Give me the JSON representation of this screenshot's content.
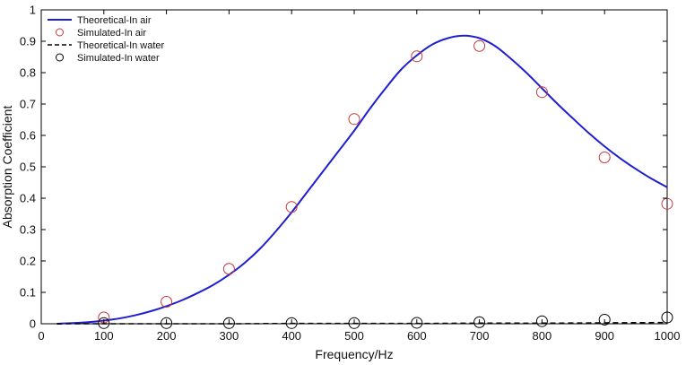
{
  "chart_data": {
    "type": "line",
    "xlabel": "Frequency/Hz",
    "ylabel": "Absorption Coefficient",
    "xlim": [
      0,
      1000
    ],
    "ylim": [
      0,
      1
    ],
    "xticks": [
      0,
      100,
      200,
      300,
      400,
      500,
      600,
      700,
      800,
      900,
      1000
    ],
    "yticks": [
      0,
      0.1,
      0.2,
      0.3,
      0.4,
      0.5,
      0.6,
      0.7,
      0.8,
      0.9,
      1
    ],
    "grid": false,
    "legend_position": "top-left",
    "series": [
      {
        "name": "Theoretical-In air",
        "style": "solid-line",
        "color": "#1f1fd1",
        "x": [
          25,
          50,
          75,
          100,
          125,
          150,
          175,
          200,
          225,
          250,
          275,
          300,
          325,
          350,
          375,
          400,
          425,
          450,
          475,
          500,
          525,
          550,
          575,
          600,
          625,
          650,
          675,
          700,
          725,
          750,
          775,
          800,
          825,
          850,
          875,
          900,
          925,
          950,
          975,
          1000
        ],
        "y": [
          0.0,
          0.002,
          0.005,
          0.01,
          0.017,
          0.027,
          0.04,
          0.056,
          0.075,
          0.098,
          0.124,
          0.156,
          0.194,
          0.24,
          0.295,
          0.355,
          0.42,
          0.485,
          0.55,
          0.615,
          0.685,
          0.75,
          0.81,
          0.855,
          0.89,
          0.91,
          0.918,
          0.91,
          0.885,
          0.845,
          0.8,
          0.75,
          0.7,
          0.653,
          0.607,
          0.565,
          0.527,
          0.493,
          0.462,
          0.435
        ]
      },
      {
        "name": "Simulated-In air",
        "style": "circle-markers",
        "color": "#c8363b",
        "x": [
          100,
          200,
          300,
          400,
          500,
          600,
          700,
          800,
          900,
          1000
        ],
        "y": [
          0.02,
          0.07,
          0.175,
          0.372,
          0.652,
          0.852,
          0.885,
          0.738,
          0.53,
          0.382
        ]
      },
      {
        "name": "Theoretical-In water",
        "style": "dashed-line",
        "color": "#000000",
        "x": [
          25,
          100,
          200,
          300,
          400,
          500,
          600,
          700,
          800,
          900,
          1000
        ],
        "y": [
          0.0,
          0.0,
          0.0,
          0.0,
          0.001,
          0.001,
          0.001,
          0.002,
          0.002,
          0.003,
          0.004
        ]
      },
      {
        "name": "Simulated-In water",
        "style": "circle-markers",
        "color": "#000000",
        "x": [
          100,
          200,
          300,
          400,
          500,
          600,
          700,
          800,
          900,
          1000
        ],
        "y": [
          0.002,
          0.002,
          0.002,
          0.002,
          0.002,
          0.003,
          0.005,
          0.008,
          0.013,
          0.02
        ]
      }
    ]
  }
}
